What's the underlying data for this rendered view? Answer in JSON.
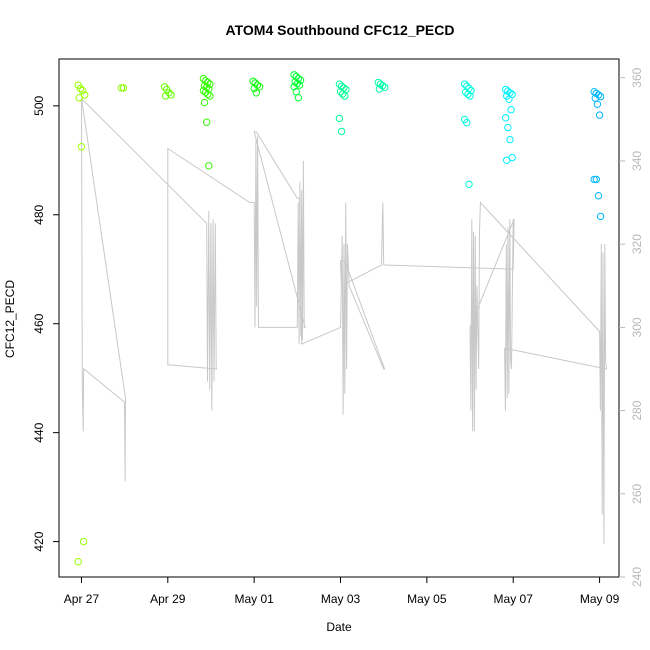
{
  "chart_data": {
    "type": "scatter",
    "title": "ATOM4 Southbound CFC12_PECD",
    "xlabel": "Date",
    "ylabel": "CFC12_PECD",
    "right_axis_label": "",
    "x_ticks": [
      {
        "label": "Apr 27",
        "day": 0
      },
      {
        "label": "Apr 29",
        "day": 2
      },
      {
        "label": "May 01",
        "day": 4
      },
      {
        "label": "May 03",
        "day": 6
      },
      {
        "label": "May 05",
        "day": 8
      },
      {
        "label": "May 07",
        "day": 10
      },
      {
        "label": "May 09",
        "day": 12
      }
    ],
    "xlim": [
      -0.52,
      12.45
    ],
    "ylim": [
      413.5,
      508.6
    ],
    "y_ticks": [
      420,
      440,
      460,
      480,
      500
    ],
    "right_ylim": [
      240,
      364.5
    ],
    "right_ticks": [
      240,
      260,
      280,
      300,
      320,
      340,
      360
    ],
    "colors": {
      "line": "#c8c8c8",
      "right_axis": "#b8b8b8"
    },
    "scatter_series": [
      {
        "day": 0.0,
        "color": "#99ff00",
        "values": [
          503.8,
          503.2,
          502.8,
          502.0,
          501.5,
          492.5,
          420.0,
          416.3
        ]
      },
      {
        "day": 1.0,
        "color": "#88ff00",
        "values": [
          503.3,
          503.3
        ]
      },
      {
        "day": 2.0,
        "color": "#66ff00",
        "values": [
          503.5,
          503.0,
          502.4,
          502.0,
          501.8
        ]
      },
      {
        "day": 2.9,
        "color": "#33ff00",
        "values": [
          505.0,
          504.6,
          504.3,
          504.0,
          503.7,
          503.4,
          503.1,
          502.8,
          502.5,
          502.1,
          501.8,
          500.6,
          497.0,
          489.0
        ]
      },
      {
        "day": 4.05,
        "color": "#11ff11",
        "values": [
          504.5,
          504.2,
          503.8,
          503.5,
          503.2,
          502.4
        ]
      },
      {
        "day": 5.0,
        "color": "#00ff33",
        "values": [
          505.7,
          505.4,
          505.0,
          504.7,
          504.4,
          504.1,
          503.8,
          503.5,
          502.6,
          501.5
        ]
      },
      {
        "day": 6.05,
        "color": "#00ff99",
        "values": [
          504.0,
          503.6,
          503.3,
          503.0,
          502.6,
          502.2,
          501.8,
          497.7,
          495.3
        ]
      },
      {
        "day": 6.95,
        "color": "#00ffaa",
        "values": [
          504.3,
          504.0,
          503.7,
          503.4,
          503.1
        ]
      },
      {
        "day": 8.95,
        "color": "#00ffdd",
        "values": [
          504.0,
          503.6,
          503.2,
          502.8,
          502.5,
          502.1,
          501.8,
          497.5,
          496.9,
          485.6
        ]
      },
      {
        "day": 9.9,
        "color": "#00f0ff",
        "values": [
          503.0,
          502.7,
          502.4,
          502.1,
          501.8,
          501.2,
          499.3,
          497.8,
          496.0,
          493.8,
          490.5,
          490.0
        ]
      },
      {
        "day": 11.95,
        "color": "#00b8ff",
        "values": [
          502.6,
          502.3,
          502.0,
          501.7,
          501.4,
          500.3,
          498.3,
          486.5,
          486.5,
          483.5,
          479.7
        ]
      }
    ],
    "right_line_path": [
      [
        0.0,
        355.0
      ],
      [
        0.02,
        286.0
      ],
      [
        0.04,
        275.0
      ],
      [
        0.05,
        290.0
      ],
      [
        0.06,
        290.0
      ],
      [
        1.0,
        282.0
      ],
      [
        1.01,
        263.0
      ],
      [
        1.02,
        283.0
      ],
      [
        0.0,
        355.0
      ],
      [
        2.9,
        325.0
      ],
      [
        2.92,
        287.0
      ],
      [
        2.95,
        328.0
      ],
      [
        2.97,
        285.0
      ],
      [
        3.0,
        325.0
      ],
      [
        3.02,
        280.0
      ],
      [
        3.05,
        326.0
      ],
      [
        3.07,
        287.0
      ],
      [
        3.1,
        325.0
      ],
      [
        3.12,
        290.0
      ],
      [
        3.14,
        290.0
      ],
      [
        2.0,
        291.0
      ],
      [
        2.0,
        343.0
      ],
      [
        3.9,
        330.0
      ],
      [
        4.0,
        330.0
      ],
      [
        4.02,
        300.0
      ],
      [
        4.04,
        345.0
      ],
      [
        4.06,
        305.0
      ],
      [
        4.08,
        346.0
      ],
      [
        4.1,
        300.0
      ],
      [
        4.12,
        300.0
      ],
      [
        5.0,
        300.0
      ],
      [
        5.02,
        330.0
      ],
      [
        5.04,
        296.0
      ],
      [
        5.06,
        335.0
      ],
      [
        5.08,
        298.0
      ],
      [
        5.1,
        333.0
      ],
      [
        5.12,
        297.0
      ],
      [
        5.14,
        340.0
      ],
      [
        5.16,
        300.0
      ],
      [
        5.18,
        300.0
      ],
      [
        4.0,
        347.0
      ],
      [
        4.05,
        347.0
      ],
      [
        5.0,
        331.0
      ],
      [
        5.05,
        331.0
      ],
      [
        5.1,
        296.0
      ],
      [
        6.0,
        300.0
      ],
      [
        6.02,
        310.0
      ],
      [
        6.04,
        322.0
      ],
      [
        6.06,
        279.0
      ],
      [
        6.08,
        320.0
      ],
      [
        6.1,
        284.0
      ],
      [
        6.12,
        330.0
      ],
      [
        6.14,
        290.0
      ],
      [
        6.16,
        320.0
      ],
      [
        6.18,
        315.0
      ],
      [
        6.2,
        310.0
      ],
      [
        7.0,
        290.0
      ],
      [
        7.02,
        290.0
      ],
      [
        6.1,
        316.0
      ],
      [
        6.0,
        316.0
      ],
      [
        6.02,
        310.0
      ],
      [
        6.95,
        315.0
      ],
      [
        6.98,
        330.0
      ],
      [
        7.0,
        315.0
      ],
      [
        7.02,
        315.0
      ],
      [
        10.0,
        314.0
      ],
      [
        10.02,
        326.0
      ],
      [
        9.0,
        300.0
      ],
      [
        9.02,
        280.0
      ],
      [
        9.04,
        326.0
      ],
      [
        9.06,
        275.0
      ],
      [
        9.08,
        323.0
      ],
      [
        9.1,
        275.0
      ],
      [
        9.12,
        322.0
      ],
      [
        9.14,
        285.0
      ],
      [
        9.16,
        310.0
      ],
      [
        9.18,
        300.0
      ],
      [
        9.2,
        290.0
      ],
      [
        9.22,
        323.0
      ],
      [
        9.24,
        330.0
      ],
      [
        12.0,
        299.0
      ],
      [
        12.02,
        280.0
      ],
      [
        12.04,
        320.0
      ],
      [
        12.06,
        255.0
      ],
      [
        12.08,
        318.0
      ],
      [
        12.1,
        248.0
      ],
      [
        12.12,
        320.0
      ],
      [
        12.14,
        292.0
      ],
      [
        12.16,
        290.0
      ],
      [
        9.8,
        295.0
      ],
      [
        9.82,
        280.0
      ],
      [
        9.84,
        320.0
      ],
      [
        9.86,
        283.0
      ],
      [
        9.88,
        324.0
      ],
      [
        9.9,
        284.0
      ],
      [
        9.92,
        326.0
      ],
      [
        9.94,
        292.0
      ],
      [
        9.96,
        290.0
      ],
      [
        10.0,
        326.0
      ]
    ]
  }
}
